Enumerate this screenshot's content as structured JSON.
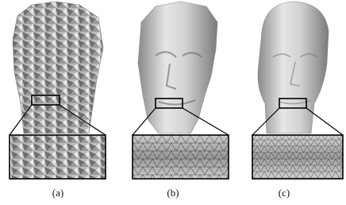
{
  "captions": [
    "(a)",
    "(b)",
    "(c)"
  ]
}
